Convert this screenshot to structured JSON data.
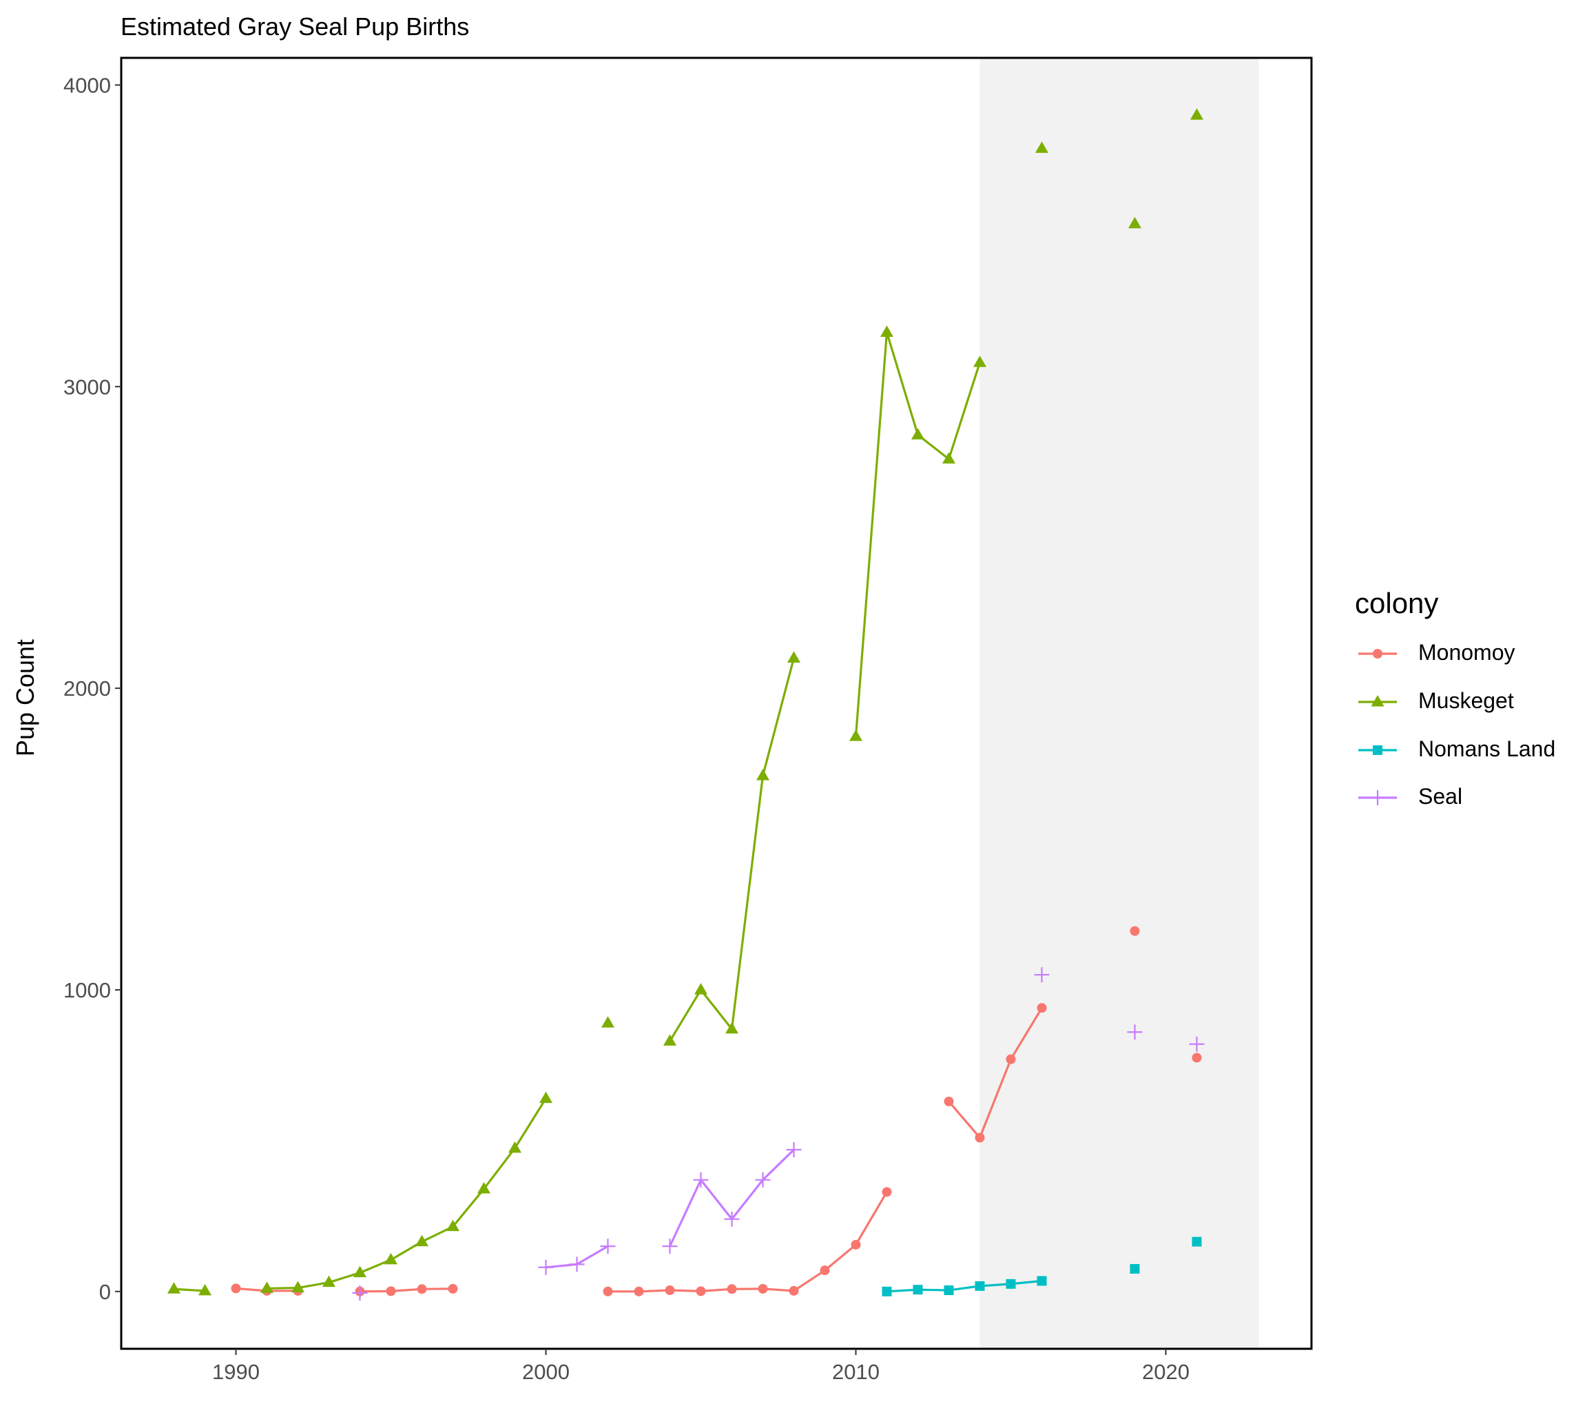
{
  "chart_data": {
    "type": "line",
    "title": "Estimated Gray Seal Pup Births",
    "xlabel": "",
    "ylabel": "Pup Count",
    "xlim": [
      1986.3,
      2024.7
    ],
    "ylim": [
      -190,
      4090
    ],
    "x_ticks": [
      1990,
      2000,
      2010,
      2020
    ],
    "y_ticks": [
      0,
      1000,
      2000,
      3000,
      4000
    ],
    "shaded_region": [
      2014,
      2023
    ],
    "grid": false,
    "legend": {
      "title": "colony",
      "position": "right"
    },
    "series": [
      {
        "name": "Monomoy",
        "color": "#F8766D",
        "marker": "circle",
        "segments": [
          [
            [
              1990,
              10
            ],
            [
              1991,
              2
            ],
            [
              1992,
              2
            ]
          ],
          [
            [
              1994,
              0
            ],
            [
              1995,
              1
            ],
            [
              1996,
              8
            ],
            [
              1997,
              9
            ]
          ],
          [
            [
              2002,
              0
            ],
            [
              2003,
              0
            ],
            [
              2004,
              4
            ],
            [
              2005,
              1
            ],
            [
              2006,
              8
            ],
            [
              2007,
              9
            ],
            [
              2008,
              2
            ],
            [
              2009,
              70
            ],
            [
              2010,
              155
            ],
            [
              2011,
              330
            ]
          ],
          [
            [
              2013,
              630
            ],
            [
              2014,
              510
            ],
            [
              2015,
              770
            ],
            [
              2016,
              940
            ]
          ],
          [
            [
              2019,
              1195
            ]
          ],
          [
            [
              2021,
              775
            ]
          ]
        ]
      },
      {
        "name": "Muskeget",
        "color": "#7CAE00",
        "marker": "triangle",
        "segments": [
          [
            [
              1988,
              8
            ],
            [
              1989,
              2
            ]
          ],
          [
            [
              1991,
              10
            ],
            [
              1992,
              12
            ],
            [
              1993,
              30
            ],
            [
              1994,
              62
            ],
            [
              1995,
              105
            ],
            [
              1996,
              165
            ],
            [
              1997,
              215
            ],
            [
              1998,
              340
            ],
            [
              1999,
              475
            ],
            [
              2000,
              640
            ]
          ],
          [
            [
              2002,
              890
            ]
          ],
          [
            [
              2004,
              830
            ],
            [
              2005,
              1000
            ],
            [
              2006,
              870
            ],
            [
              2007,
              1710
            ],
            [
              2008,
              2100
            ]
          ],
          [
            [
              2010,
              1840
            ],
            [
              2011,
              3180
            ],
            [
              2012,
              2840
            ],
            [
              2013,
              2760
            ],
            [
              2014,
              3080
            ]
          ],
          [
            [
              2016,
              3790
            ]
          ],
          [
            [
              2019,
              3540
            ]
          ],
          [
            [
              2021,
              3900
            ]
          ]
        ]
      },
      {
        "name": "Nomans Land",
        "color": "#00BFC4",
        "marker": "square",
        "segments": [
          [
            [
              2011,
              0
            ],
            [
              2012,
              6
            ],
            [
              2013,
              4
            ],
            [
              2014,
              18
            ],
            [
              2015,
              25
            ],
            [
              2016,
              35
            ]
          ],
          [
            [
              2019,
              75
            ]
          ],
          [
            [
              2021,
              165
            ]
          ]
        ]
      },
      {
        "name": "Seal",
        "color": "#C77CFF",
        "marker": "plus",
        "segments": [
          [
            [
              1994,
              -5
            ]
          ],
          [
            [
              2000,
              80
            ],
            [
              2001,
              90
            ],
            [
              2002,
              150
            ]
          ],
          [
            [
              2004,
              150
            ],
            [
              2005,
              370
            ],
            [
              2006,
              240
            ],
            [
              2007,
              370
            ],
            [
              2008,
              470
            ]
          ],
          [
            [
              2016,
              1050
            ]
          ],
          [
            [
              2019,
              860
            ]
          ],
          [
            [
              2021,
              820
            ]
          ]
        ]
      }
    ]
  }
}
